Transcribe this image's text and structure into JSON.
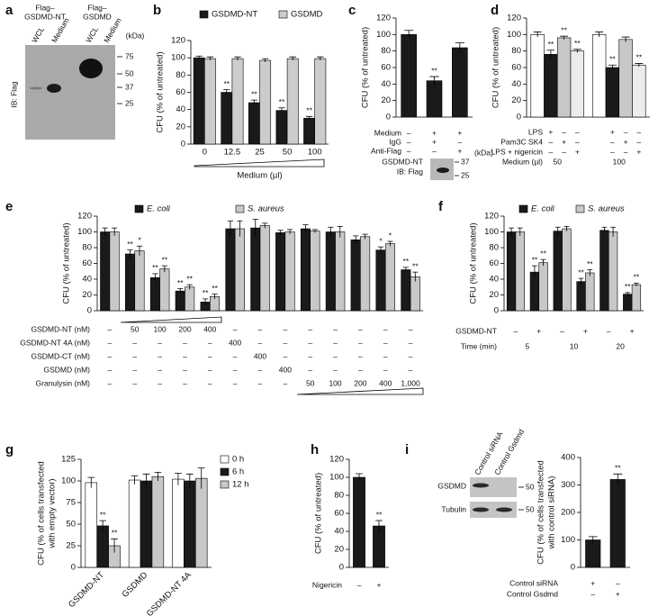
{
  "chart_data": [
    {
      "panel": "a",
      "type": "blot",
      "groups": [
        [
          "Flag–",
          "GSDMD-NT"
        ],
        [
          "Flag–",
          "GSDMD"
        ]
      ],
      "lanes": [
        "WCL",
        "Medium",
        "WCL",
        "Medium"
      ],
      "unit": "(kDa)",
      "markers": [
        75,
        50,
        37,
        25
      ],
      "ylabel": "IB: Flag"
    },
    {
      "panel": "b",
      "type": "bar",
      "ylabel": "CFU (% of untreated)",
      "ylim": [
        0,
        120
      ],
      "yticks": [
        0,
        20,
        40,
        60,
        80,
        100,
        120
      ],
      "categories": [
        "0",
        "12.5",
        "25",
        "50",
        "100"
      ],
      "xlabel": "Medium (µl)",
      "series": [
        {
          "name": "GSDMD-NT",
          "color": "#1a1a1a",
          "values": [
            100,
            60,
            48,
            39,
            30
          ],
          "errors": [
            2,
            3,
            3,
            3,
            2
          ],
          "annotations": [
            null,
            "**",
            "**",
            "**",
            "**"
          ]
        },
        {
          "name": "GSDMD",
          "color": "#cccccc",
          "values": [
            99,
            99,
            97,
            99,
            99
          ],
          "errors": [
            2,
            2,
            2,
            2,
            2
          ]
        }
      ]
    },
    {
      "panel": "c",
      "type": "bar",
      "ylabel": "CFU (% of untreated)",
      "ylim": [
        0,
        120
      ],
      "yticks": [
        0,
        20,
        40,
        60,
        80,
        100,
        120
      ],
      "series": [
        {
          "color": "#1a1a1a",
          "values": [
            100,
            44,
            84
          ],
          "errors": [
            5,
            5,
            6
          ],
          "annotations": [
            null,
            "**",
            null
          ]
        }
      ],
      "conditions": [
        {
          "label": "Medium",
          "values": [
            "–",
            "+",
            "+"
          ]
        },
        {
          "label": "IgG",
          "values": [
            "–",
            "+",
            "–"
          ]
        },
        {
          "label": "Anti-Flag",
          "values": [
            "–",
            "–",
            "+"
          ]
        }
      ],
      "blot": {
        "label": [
          "GSDMD-NT",
          "IB: Flag"
        ],
        "unit": "(kDa)",
        "markers": [
          37,
          25
        ]
      }
    },
    {
      "panel": "d",
      "type": "bar",
      "ylabel": "CFU (% of untreated)",
      "ylim": [
        0,
        120
      ],
      "yticks": [
        0,
        20,
        40,
        60,
        80,
        100,
        120
      ],
      "series": [
        {
          "color": "#ffffff",
          "values": [
            100,
            100
          ],
          "errors": [
            3,
            3
          ]
        },
        {
          "color": "#1a1a1a",
          "values": [
            76,
            60
          ],
          "errors": [
            5,
            3
          ],
          "annotations": [
            "**",
            "**"
          ]
        },
        {
          "color": "#c8c8c8",
          "values": [
            96,
            94
          ],
          "errors": [
            2,
            3
          ],
          "annotations": [
            "**",
            null
          ]
        },
        {
          "color": "#ececec",
          "values": [
            80,
            63
          ],
          "errors": [
            2,
            2
          ],
          "annotations": [
            "**",
            "**"
          ]
        }
      ],
      "conditions": [
        {
          "label": "LPS",
          "values": [
            null,
            "+",
            "–",
            "–",
            null,
            "+",
            "–",
            "–"
          ]
        },
        {
          "label": "Pam3C SK4",
          "values": [
            null,
            "–",
            "+",
            "–",
            null,
            "–",
            "+",
            "–"
          ]
        },
        {
          "label": "LPS + nigericin",
          "values": [
            null,
            "–",
            "–",
            "+",
            null,
            "–",
            "–",
            "+"
          ]
        },
        {
          "label": "Medium (µl)",
          "values": [
            "50",
            "100"
          ]
        }
      ]
    },
    {
      "panel": "e",
      "type": "bar",
      "ylabel": "CFU (% of untreated)",
      "ylim": [
        0,
        120
      ],
      "yticks": [
        0,
        20,
        40,
        60,
        80,
        100,
        120
      ],
      "series": [
        {
          "name": "E. coli",
          "color": "#1a1a1a",
          "values": [
            100,
            72,
            42,
            25,
            11,
            104,
            105,
            99,
            104,
            100,
            90,
            77,
            52
          ],
          "errors": [
            5,
            5,
            5,
            3,
            4,
            10,
            11,
            3,
            5,
            6,
            5,
            4,
            3
          ],
          "annotations": [
            null,
            "**",
            "**",
            "**",
            "**",
            null,
            null,
            null,
            null,
            null,
            null,
            "*",
            "**"
          ]
        },
        {
          "name": "S. aureus",
          "color": "#c8c8c8",
          "values": [
            100,
            76,
            53,
            30,
            18,
            104,
            108,
            100,
            101,
            100,
            94,
            85,
            43
          ],
          "errors": [
            5,
            6,
            4,
            3,
            3,
            10,
            3,
            3,
            2,
            7,
            3,
            3,
            6
          ],
          "annotations": [
            null,
            "*",
            "**",
            "**",
            "**",
            null,
            null,
            null,
            null,
            null,
            null,
            "*",
            "**"
          ]
        }
      ],
      "conditions": [
        {
          "label": "GSDMD-NT (nM)",
          "values": [
            "–",
            "50",
            "100",
            "200",
            "400",
            "–",
            "–",
            "–",
            "–",
            "–",
            "–",
            "–",
            "–"
          ]
        },
        {
          "label": "GSDMD-NT 4A (nM)",
          "values": [
            "–",
            "–",
            "–",
            "–",
            "–",
            "400",
            "–",
            "–",
            "–",
            "–",
            "–",
            "–",
            "–"
          ]
        },
        {
          "label": "GSDMD-CT (nM)",
          "values": [
            "–",
            "–",
            "–",
            "–",
            "–",
            "–",
            "400",
            "–",
            "–",
            "–",
            "–",
            "–",
            "–"
          ]
        },
        {
          "label": "GSDMD (nM)",
          "values": [
            "–",
            "–",
            "–",
            "–",
            "–",
            "–",
            "–",
            "400",
            "–",
            "–",
            "–",
            "–",
            "–"
          ]
        },
        {
          "label": "Granulysin (nM)",
          "values": [
            "–",
            "–",
            "–",
            "–",
            "–",
            "–",
            "–",
            "–",
            "50",
            "100",
            "200",
            "400",
            "1,000"
          ]
        }
      ]
    },
    {
      "panel": "f",
      "type": "bar",
      "ylabel": "CFU (% of untreated)",
      "ylim": [
        0,
        120
      ],
      "yticks": [
        0,
        20,
        40,
        60,
        80,
        100,
        120
      ],
      "series": [
        {
          "name": "E. coli",
          "color": "#1a1a1a",
          "values": [
            100,
            49,
            101,
            37,
            102,
            21
          ],
          "errors": [
            5,
            8,
            5,
            4,
            4,
            2
          ],
          "annotations": [
            null,
            "**",
            null,
            "**",
            null,
            "**"
          ]
        },
        {
          "name": "S. aureus",
          "color": "#c8c8c8",
          "values": [
            100,
            61,
            104,
            48,
            100,
            33
          ],
          "errors": [
            5,
            4,
            3,
            4,
            6,
            2
          ],
          "annotations": [
            null,
            "**",
            null,
            "**",
            null,
            "**"
          ]
        }
      ],
      "conditions": [
        {
          "label": "GSDMD-NT",
          "values": [
            "–",
            "+",
            "–",
            "+",
            "–",
            "+"
          ]
        },
        {
          "label": "Time (min)",
          "values": [
            "5",
            "10",
            "20"
          ]
        }
      ]
    },
    {
      "panel": "g",
      "type": "bar",
      "ylabel": [
        "CFU (% of cells transfected",
        "with empty vector)"
      ],
      "ylim": [
        0,
        125
      ],
      "yticks": [
        0,
        25,
        50,
        75,
        100,
        125
      ],
      "categories": [
        "GSDMD-NT",
        "GSDMD",
        "GSDMD-NT 4A"
      ],
      "series": [
        {
          "name": "0 h",
          "color": "#ffffff",
          "values": [
            98,
            101,
            102
          ],
          "errors": [
            6,
            5,
            7
          ]
        },
        {
          "name": "6 h",
          "color": "#1a1a1a",
          "values": [
            48,
            100,
            100
          ],
          "errors": [
            6,
            8,
            8
          ],
          "annotations": [
            "**",
            null,
            null
          ]
        },
        {
          "name": "12 h",
          "color": "#c8c8c8",
          "values": [
            25,
            105,
            103
          ],
          "errors": [
            8,
            5,
            12
          ],
          "annotations": [
            "**",
            null,
            null
          ]
        }
      ]
    },
    {
      "panel": "h",
      "type": "bar",
      "ylabel": "CFU (% of untreated)",
      "ylim": [
        0,
        120
      ],
      "yticks": [
        0,
        20,
        40,
        60,
        80,
        100,
        120
      ],
      "series": [
        {
          "color": "#1a1a1a",
          "values": [
            100,
            46
          ],
          "errors": [
            4,
            6
          ],
          "annotations": [
            null,
            "**"
          ]
        }
      ],
      "conditions": [
        {
          "label": "Nigericin",
          "values": [
            "–",
            "+"
          ]
        }
      ]
    },
    {
      "panel": "i",
      "type": "blot",
      "lanes": [
        "Control siRNA",
        "Control Gsdmd"
      ],
      "rows": [
        "GSDMD",
        "Tubulin"
      ],
      "markers": [
        50,
        50
      ]
    },
    {
      "type": "bar",
      "ylabel": [
        "CFU (% of cells transfected",
        "with control siRNA)"
      ],
      "ylim": [
        0,
        400
      ],
      "yticks": [
        0,
        100,
        200,
        300,
        400
      ],
      "series": [
        {
          "color": "#1a1a1a",
          "values": [
            100,
            320
          ],
          "errors": [
            12,
            20
          ],
          "annotations": [
            null,
            "**"
          ]
        }
      ],
      "conditions": [
        {
          "label": "Control siRNA",
          "values": [
            "+",
            "–"
          ]
        },
        {
          "label": "Control Gsdmd",
          "values": [
            "–",
            "+"
          ]
        }
      ]
    }
  ]
}
